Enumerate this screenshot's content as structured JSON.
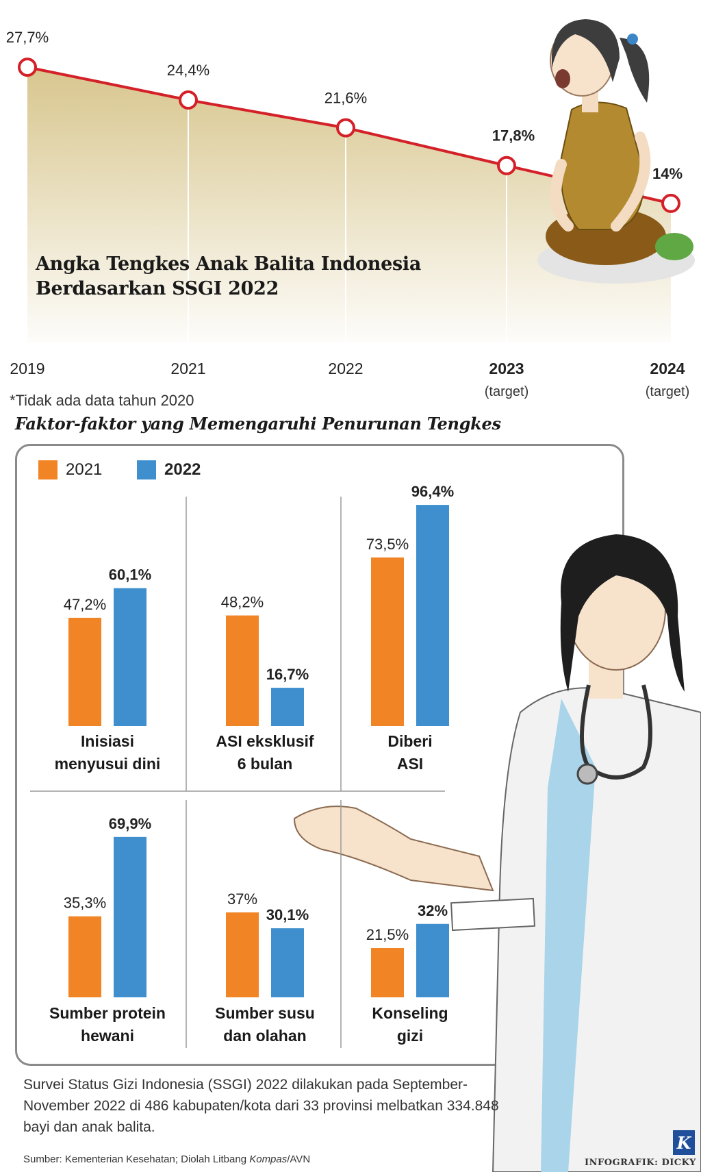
{
  "chart_data": [
    {
      "type": "line",
      "title": "Angka Tengkes Anak Balita Indonesia",
      "subtitle": "Berdasarkan SSGI 2022",
      "x": [
        "2019",
        "2021",
        "2022",
        "2023",
        "2024"
      ],
      "x_sub": [
        "",
        "",
        "",
        "(target)",
        "(target)"
      ],
      "values": [
        27.7,
        24.4,
        21.6,
        17.8,
        14
      ],
      "value_labels": [
        "27,7%",
        "24,4%",
        "21,6%",
        "17,8%",
        "14%"
      ],
      "ylim": [
        0,
        30
      ],
      "grid": false,
      "colors": {
        "line": "#d42028",
        "area": "#d8c68e"
      }
    },
    {
      "type": "bar",
      "title": "Faktor-faktor yang Memengaruhi Penurunan Tengkes",
      "ylim": [
        0,
        100
      ],
      "grid": false,
      "legend_position": "top-left",
      "series": [
        {
          "name": "2021",
          "color": "#f18424"
        },
        {
          "name": "2022",
          "color": "#3f8fce"
        }
      ],
      "groups": [
        {
          "label_lines": [
            "Inisiasi",
            "menyusui dini"
          ],
          "values": [
            47.2,
            60.1
          ],
          "labels": [
            "47,2%",
            "60,1%"
          ]
        },
        {
          "label_lines": [
            "ASI  eksklusif",
            "6 bulan"
          ],
          "values": [
            48.2,
            16.7
          ],
          "labels": [
            "48,2%",
            "16,7%"
          ]
        },
        {
          "label_lines": [
            "Diberi",
            "ASI"
          ],
          "values": [
            73.5,
            96.4
          ],
          "labels": [
            "73,5%",
            "96,4%"
          ]
        },
        {
          "label_lines": [
            "Sumber protein",
            "hewani"
          ],
          "values": [
            35.3,
            69.9
          ],
          "labels": [
            "35,3%",
            "69,9%"
          ]
        },
        {
          "label_lines": [
            "Sumber susu",
            "dan olahan"
          ],
          "values": [
            37,
            30.1
          ],
          "labels": [
            "37%",
            "30,1%"
          ]
        },
        {
          "label_lines": [
            "Konseling",
            "gizi"
          ],
          "values": [
            21.5,
            32
          ],
          "labels": [
            "21,5%",
            "32%"
          ]
        }
      ]
    }
  ],
  "note": "*Tidak ada data tahun 2020",
  "footer_text": "Survei Status Gizi Indonesia (SSGI) 2022 dilakukan pada September-November 2022 di 486 kabupaten/kota dari 33 provinsi melbatkan 334.848 bayi dan anak balita.",
  "source_prefix": "Sumber: Kementerian Kesehatan; Diolah Litbang ",
  "source_italic": "Kompas",
  "source_suffix": "/AVN",
  "credit": "INFOGRAFIK: DICKY",
  "logo_letter": "K",
  "illustrations": [
    "child-illustration",
    "doctor-illustration"
  ]
}
